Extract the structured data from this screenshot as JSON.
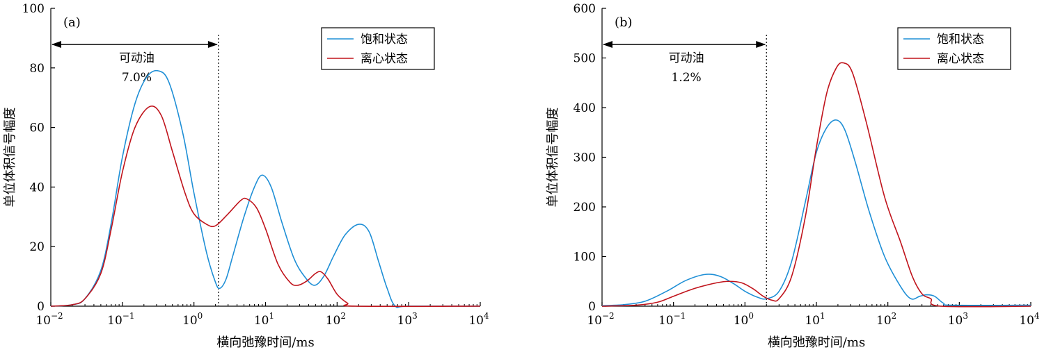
{
  "colors": {
    "saturated": "#1f8fd6",
    "centrifuged": "#c0141c",
    "axis": "#000000"
  },
  "chart_data": [
    {
      "type": "line",
      "panel_label": "(a)",
      "xlabel": "横向弛豫时间/ms",
      "ylabel": "单位体积信号幅度",
      "x_scale": "log",
      "xlim": [
        0.01,
        10000
      ],
      "ylim": [
        0,
        100
      ],
      "x_ticks": [
        {
          "value": 0.01,
          "base": "10",
          "exp": "−2"
        },
        {
          "value": 0.1,
          "base": "10",
          "exp": "−1"
        },
        {
          "value": 1,
          "base": "10",
          "exp": "0"
        },
        {
          "value": 10,
          "base": "10",
          "exp": "1"
        },
        {
          "value": 100,
          "base": "10",
          "exp": "2"
        },
        {
          "value": 1000,
          "base": "10",
          "exp": "3"
        },
        {
          "value": 10000,
          "base": "10",
          "exp": "4"
        }
      ],
      "y_ticks": [
        0,
        20,
        40,
        60,
        80,
        100
      ],
      "cutoff_x": 2.2,
      "annotation": {
        "label": "可动油",
        "value": "7.0%"
      },
      "legend": {
        "position": "top-right",
        "entries": [
          "饱和状态",
          "离心状态"
        ]
      },
      "series": [
        {
          "name": "饱和状态",
          "color_key": "saturated",
          "points": [
            [
              0.01,
              0
            ],
            [
              0.02,
              0.5
            ],
            [
              0.03,
              2.5
            ],
            [
              0.05,
              12
            ],
            [
              0.07,
              28
            ],
            [
              0.1,
              50
            ],
            [
              0.15,
              68
            ],
            [
              0.22,
              77
            ],
            [
              0.32,
              79
            ],
            [
              0.45,
              75
            ],
            [
              0.7,
              58
            ],
            [
              1.0,
              38
            ],
            [
              1.5,
              18
            ],
            [
              2.0,
              8
            ],
            [
              2.3,
              6
            ],
            [
              2.8,
              9
            ],
            [
              3.5,
              17
            ],
            [
              5,
              30
            ],
            [
              7,
              40
            ],
            [
              9,
              44
            ],
            [
              12,
              40
            ],
            [
              17,
              28
            ],
            [
              25,
              16
            ],
            [
              35,
              10
            ],
            [
              48,
              7
            ],
            [
              65,
              10
            ],
            [
              90,
              17
            ],
            [
              130,
              24
            ],
            [
              200,
              27.5
            ],
            [
              280,
              25
            ],
            [
              380,
              15
            ],
            [
              500,
              6
            ],
            [
              650,
              0
            ],
            [
              1000,
              0
            ],
            [
              10000,
              0
            ]
          ]
        },
        {
          "name": "离心状态",
          "color_key": "centrifuged",
          "points": [
            [
              0.01,
              0
            ],
            [
              0.02,
              0.5
            ],
            [
              0.03,
              2.5
            ],
            [
              0.05,
              11
            ],
            [
              0.07,
              26
            ],
            [
              0.1,
              45
            ],
            [
              0.15,
              60
            ],
            [
              0.24,
              67
            ],
            [
              0.35,
              64
            ],
            [
              0.5,
              52
            ],
            [
              0.75,
              38
            ],
            [
              1.0,
              31
            ],
            [
              1.5,
              27.5
            ],
            [
              2.0,
              27
            ],
            [
              3.0,
              31
            ],
            [
              4.5,
              35.5
            ],
            [
              5.5,
              36
            ],
            [
              7.5,
              33
            ],
            [
              10,
              26
            ],
            [
              15,
              14
            ],
            [
              22,
              8
            ],
            [
              28,
              7
            ],
            [
              38,
              8.5
            ],
            [
              50,
              11
            ],
            [
              60,
              11.5
            ],
            [
              75,
              9
            ],
            [
              100,
              4
            ],
            [
              140,
              1
            ],
            [
              180,
              0
            ],
            [
              10000,
              0
            ]
          ]
        }
      ]
    },
    {
      "type": "line",
      "panel_label": "(b)",
      "xlabel": "横向弛豫时间/ms",
      "ylabel": "单位体积信号幅度",
      "x_scale": "log",
      "xlim": [
        0.01,
        10000
      ],
      "ylim": [
        0,
        600
      ],
      "x_ticks": [
        {
          "value": 0.01,
          "base": "10",
          "exp": "−2"
        },
        {
          "value": 0.1,
          "base": "10",
          "exp": "−1"
        },
        {
          "value": 1,
          "base": "10",
          "exp": "0"
        },
        {
          "value": 10,
          "base": "10",
          "exp": "1"
        },
        {
          "value": 100,
          "base": "10",
          "exp": "2"
        },
        {
          "value": 1000,
          "base": "10",
          "exp": "3"
        },
        {
          "value": 10000,
          "base": "10",
          "exp": "4"
        }
      ],
      "y_ticks": [
        0,
        100,
        200,
        300,
        400,
        500,
        600
      ],
      "cutoff_x": 2.0,
      "annotation": {
        "label": "可动油",
        "value": "1.2%"
      },
      "legend": {
        "position": "top-right",
        "entries": [
          "饱和状态",
          "离心状态"
        ]
      },
      "series": [
        {
          "name": "饱和状态",
          "color_key": "saturated",
          "points": [
            [
              0.01,
              1
            ],
            [
              0.02,
              3
            ],
            [
              0.04,
              10
            ],
            [
              0.08,
              30
            ],
            [
              0.15,
              52
            ],
            [
              0.28,
              64
            ],
            [
              0.45,
              60
            ],
            [
              0.7,
              45
            ],
            [
              1.0,
              30
            ],
            [
              1.5,
              18
            ],
            [
              2.0,
              15
            ],
            [
              3.0,
              30
            ],
            [
              4.5,
              90
            ],
            [
              7,
              210
            ],
            [
              10,
              310
            ],
            [
              14,
              360
            ],
            [
              19,
              375
            ],
            [
              25,
              355
            ],
            [
              35,
              290
            ],
            [
              55,
              190
            ],
            [
              90,
              100
            ],
            [
              150,
              40
            ],
            [
              210,
              15
            ],
            [
              280,
              20
            ],
            [
              350,
              23
            ],
            [
              450,
              20
            ],
            [
              600,
              6
            ],
            [
              800,
              2
            ],
            [
              10000,
              2
            ]
          ]
        },
        {
          "name": "离心状态",
          "color_key": "centrifuged",
          "points": [
            [
              0.01,
              0
            ],
            [
              0.03,
              2
            ],
            [
              0.06,
              8
            ],
            [
              0.1,
              20
            ],
            [
              0.2,
              36
            ],
            [
              0.4,
              47
            ],
            [
              0.6,
              50
            ],
            [
              0.9,
              47
            ],
            [
              1.3,
              35
            ],
            [
              1.8,
              20
            ],
            [
              2.4,
              12
            ],
            [
              3.0,
              15
            ],
            [
              4.5,
              60
            ],
            [
              7,
              180
            ],
            [
              10,
              320
            ],
            [
              14,
              430
            ],
            [
              19,
              480
            ],
            [
              24,
              490
            ],
            [
              32,
              470
            ],
            [
              50,
              370
            ],
            [
              90,
              220
            ],
            [
              150,
              130
            ],
            [
              220,
              60
            ],
            [
              300,
              25
            ],
            [
              400,
              15
            ],
            [
              550,
              0
            ],
            [
              10000,
              0
            ]
          ]
        }
      ]
    }
  ]
}
